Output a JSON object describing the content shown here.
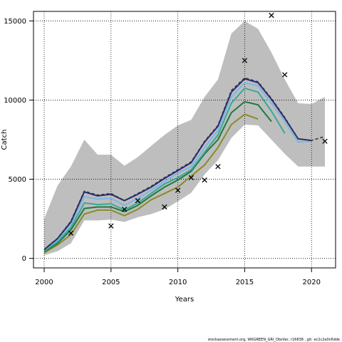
{
  "chart_data": {
    "type": "line",
    "xlabel": "Years",
    "ylabel": "Catch",
    "xlim": [
      1999.2,
      2021.8
    ],
    "ylim": [
      -600,
      15600
    ],
    "xticks": [
      2000,
      2005,
      2010,
      2015,
      2020
    ],
    "yticks": [
      0,
      5000,
      10000,
      15000
    ],
    "grid": true,
    "band": {
      "x": [
        2000,
        2001,
        2002,
        2003,
        2004,
        2005,
        2006,
        2007,
        2008,
        2009,
        2010,
        2011,
        2012,
        2013,
        2014,
        2015,
        2016,
        2017,
        2018,
        2019,
        2020,
        2021
      ],
      "upper": [
        2500,
        4600,
        5800,
        7500,
        6550,
        6550,
        5850,
        6400,
        7100,
        7800,
        8400,
        8750,
        10200,
        11300,
        14200,
        15000,
        14500,
        13000,
        11300,
        9800,
        9750,
        10200
      ],
      "lower": [
        200,
        450,
        950,
        2400,
        2400,
        2450,
        2300,
        2600,
        2800,
        3100,
        3600,
        4150,
        5300,
        6200,
        7600,
        8450,
        8400,
        7500,
        6600,
        5800,
        5800,
        5800
      ]
    },
    "observed": {
      "x": [
        2002,
        2005,
        2006,
        2007,
        2009,
        2010,
        2011,
        2012,
        2013,
        2015,
        2017,
        2018,
        2021
      ],
      "y": [
        1600,
        2050,
        3100,
        3650,
        3250,
        4300,
        5100,
        4950,
        5800,
        12500,
        15350,
        11600,
        7400
      ]
    },
    "series": [
      {
        "color": "#8a8a2a",
        "dashed": false,
        "x": [
          2000,
          2001,
          2002,
          2003,
          2004,
          2005,
          2006,
          2007,
          2008,
          2009,
          2010,
          2011,
          2012,
          2013,
          2014,
          2015,
          2016
        ],
        "y": [
          350,
          850,
          1500,
          2800,
          3050,
          3050,
          2700,
          3100,
          3700,
          4100,
          4500,
          5200,
          5900,
          7000,
          8450,
          9100,
          8800
        ]
      },
      {
        "color": "#1e7a3c",
        "dashed": false,
        "x": [
          2000,
          2001,
          2002,
          2003,
          2004,
          2005,
          2006,
          2007,
          2008,
          2009,
          2010,
          2011,
          2012,
          2013,
          2014,
          2015,
          2016,
          2017
        ],
        "y": [
          420,
          950,
          1800,
          3150,
          3250,
          3250,
          2950,
          3350,
          3950,
          4500,
          4950,
          5500,
          6600,
          7500,
          9200,
          9900,
          9700,
          8650
        ]
      },
      {
        "color": "#3aa89a",
        "dashed": false,
        "x": [
          2000,
          2001,
          2002,
          2003,
          2004,
          2005,
          2006,
          2007,
          2008,
          2009,
          2010,
          2011,
          2012,
          2013,
          2014,
          2015,
          2016,
          2017,
          2018
        ],
        "y": [
          480,
          1050,
          1950,
          3500,
          3400,
          3450,
          3050,
          3500,
          4100,
          4700,
          5100,
          5600,
          6700,
          7800,
          9800,
          10750,
          10500,
          9300,
          7900
        ]
      },
      {
        "color": "#7ab8e0",
        "dashed": false,
        "x": [
          2000,
          2001,
          2002,
          2003,
          2004,
          2005,
          2006,
          2007,
          2008,
          2009,
          2010,
          2011,
          2012,
          2013,
          2014,
          2015,
          2016,
          2017,
          2018,
          2019,
          2020
        ],
        "y": [
          520,
          1150,
          2150,
          3900,
          3750,
          3800,
          3350,
          3800,
          4300,
          4850,
          5400,
          5800,
          7000,
          8100,
          10200,
          11100,
          10900,
          9800,
          8650,
          7350,
          7400
        ]
      },
      {
        "color": "#2a2a8a",
        "dashed": false,
        "x": [
          2000,
          2001,
          2002,
          2003,
          2004,
          2005,
          2006,
          2007,
          2008,
          2009,
          2010,
          2011,
          2012,
          2013,
          2014,
          2015,
          2016,
          2017,
          2018,
          2019,
          2020
        ],
        "y": [
          550,
          1250,
          2300,
          4200,
          3950,
          4050,
          3650,
          4050,
          4500,
          5050,
          5550,
          6050,
          7350,
          8350,
          10500,
          11350,
          11100,
          10050,
          8850,
          7550,
          7450
        ]
      },
      {
        "color": "#333333",
        "dashed": true,
        "x": [
          2000,
          2001,
          2002,
          2003,
          2004,
          2005,
          2006,
          2007,
          2008,
          2009,
          2010,
          2011,
          2012,
          2013,
          2014,
          2015,
          2016,
          2017,
          2018,
          2019,
          2020,
          2021
        ],
        "y": [
          570,
          1270,
          2350,
          4250,
          4000,
          4100,
          3650,
          4100,
          4550,
          5100,
          5600,
          6100,
          7400,
          8400,
          10600,
          11400,
          11150,
          10100,
          8900,
          7550,
          7450,
          7700
        ]
      }
    ]
  },
  "footer": "stockassessment.org,  WKGREEN_GRI_ObsVar,  r16838 ,  git:  ec2c2a0c6dde"
}
